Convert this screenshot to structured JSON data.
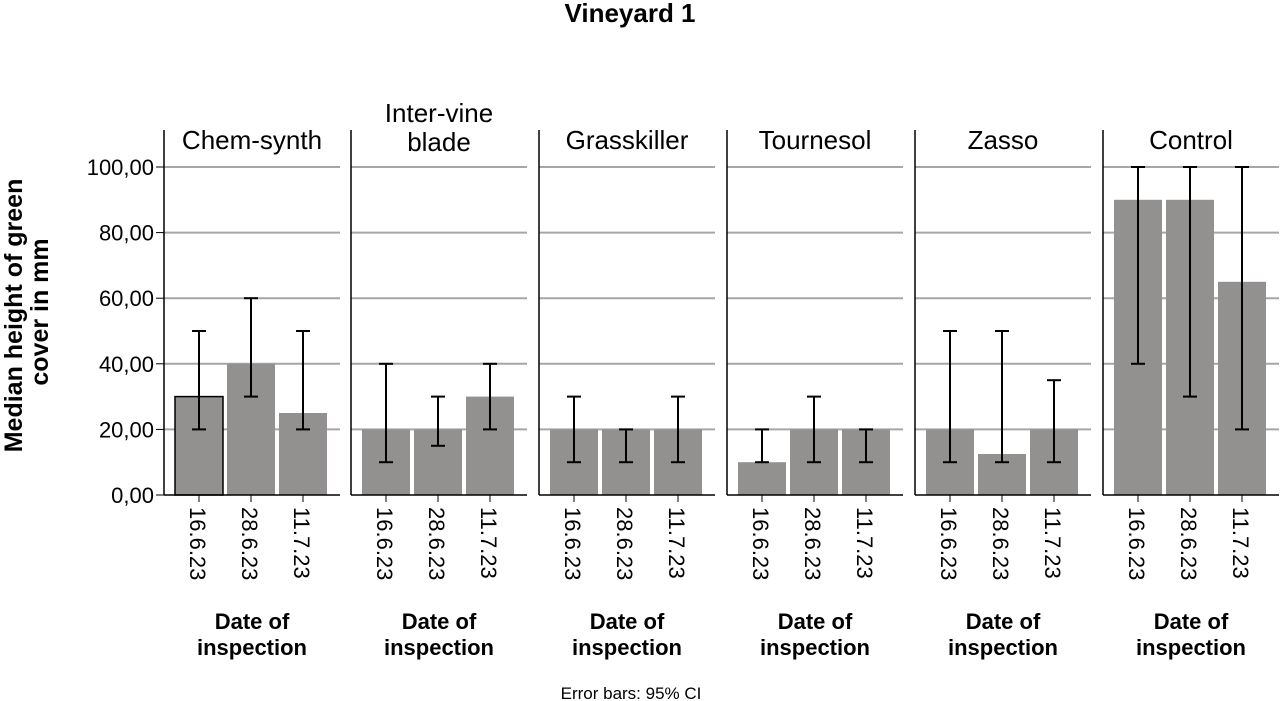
{
  "chart_data": {
    "type": "bar",
    "title": "Vineyard 1",
    "ylabel_lines": [
      "Median height of green",
      "cover in mm"
    ],
    "xlabel_lines": [
      "Date of",
      "inspection"
    ],
    "footnote": "Error bars: 95% CI",
    "ylim": [
      0,
      100
    ],
    "yticks": [
      0,
      20,
      40,
      60,
      80,
      100
    ],
    "ytick_labels": [
      "0,00",
      "20,00",
      "40,00",
      "60,00",
      "80,00",
      "100,00"
    ],
    "grid": true,
    "categories": [
      "16.6.23",
      "28.6.23",
      "11.7.23"
    ],
    "bar_color": "#939090",
    "grid_color": "#a6a6a6",
    "panels": [
      {
        "name_lines": [
          "Chem-synth"
        ],
        "values": [
          30,
          40,
          25
        ],
        "ci_low": [
          20,
          30,
          20
        ],
        "ci_high": [
          50,
          60,
          50
        ],
        "highlighted": [
          true,
          false,
          false
        ]
      },
      {
        "name_lines": [
          "Inter-vine",
          "blade"
        ],
        "values": [
          20,
          20,
          30
        ],
        "ci_low": [
          10,
          15,
          20
        ],
        "ci_high": [
          40,
          30,
          40
        ],
        "highlighted": [
          false,
          false,
          false
        ]
      },
      {
        "name_lines": [
          "Grasskiller"
        ],
        "values": [
          20,
          20,
          20
        ],
        "ci_low": [
          10,
          10,
          10
        ],
        "ci_high": [
          30,
          20,
          30
        ],
        "highlighted": [
          false,
          false,
          false
        ]
      },
      {
        "name_lines": [
          "Tournesol"
        ],
        "values": [
          10,
          20,
          20
        ],
        "ci_low": [
          10,
          10,
          10
        ],
        "ci_high": [
          20,
          30,
          20
        ],
        "highlighted": [
          false,
          false,
          false
        ]
      },
      {
        "name_lines": [
          "Zasso"
        ],
        "values": [
          20,
          12.5,
          20
        ],
        "ci_low": [
          10,
          10,
          10
        ],
        "ci_high": [
          50,
          50,
          35
        ],
        "highlighted": [
          false,
          false,
          false
        ]
      },
      {
        "name_lines": [
          "Control"
        ],
        "values": [
          90,
          90,
          65
        ],
        "ci_low": [
          40,
          30,
          20
        ],
        "ci_high": [
          100,
          100,
          100
        ],
        "highlighted": [
          false,
          false,
          false
        ]
      }
    ]
  }
}
